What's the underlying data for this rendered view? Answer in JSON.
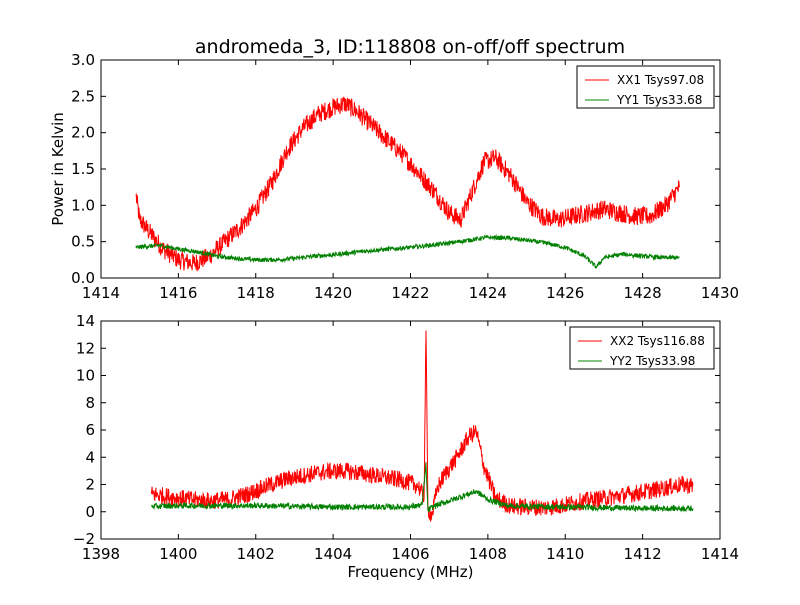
{
  "figure": {
    "title": "andromeda_3, ID:118808 on-off/off spectrum"
  },
  "colors": {
    "red": "#ff0000",
    "green": "#008000",
    "axes": "#000000",
    "background": "#ffffff"
  },
  "chart_data": [
    {
      "type": "line",
      "title": "andromeda_3, ID:118808 on-off/off spectrum",
      "xlabel": "",
      "ylabel": "Power in Kelvin",
      "xlim": [
        1414,
        1430
      ],
      "ylim": [
        0,
        3.0
      ],
      "xticks": [
        1414,
        1416,
        1418,
        1420,
        1422,
        1424,
        1426,
        1428,
        1430
      ],
      "xtick_labels": [
        "1414",
        "1416",
        "1418",
        "1420",
        "1422",
        "1424",
        "1426",
        "1428",
        "1430"
      ],
      "yticks": [
        0,
        0.5,
        1.0,
        1.5,
        2.0,
        2.5,
        3.0
      ],
      "ytick_labels": [
        "0.0",
        "0.5",
        "1.0",
        "1.5",
        "2.0",
        "2.5",
        "3.0"
      ],
      "grid": false,
      "legend": "top-right",
      "series": [
        {
          "name": "XX1 Tsys97.08",
          "color": "#ff0000",
          "x": [
            1414.9,
            1415.0,
            1415.3,
            1415.6,
            1416.0,
            1416.4,
            1416.8,
            1417.2,
            1417.6,
            1418.0,
            1418.4,
            1418.8,
            1419.2,
            1419.6,
            1420.0,
            1420.3,
            1420.6,
            1421.0,
            1421.4,
            1421.8,
            1422.2,
            1422.6,
            1423.0,
            1423.3,
            1423.6,
            1423.9,
            1424.2,
            1424.6,
            1425.0,
            1425.4,
            1425.8,
            1426.2,
            1426.6,
            1427.0,
            1427.4,
            1427.8,
            1428.2,
            1428.6,
            1428.95
          ],
          "y": [
            1.15,
            0.8,
            0.6,
            0.4,
            0.25,
            0.2,
            0.3,
            0.5,
            0.7,
            0.95,
            1.3,
            1.75,
            2.05,
            2.25,
            2.35,
            2.4,
            2.3,
            2.1,
            1.9,
            1.7,
            1.45,
            1.2,
            0.9,
            0.8,
            1.2,
            1.6,
            1.65,
            1.4,
            1.05,
            0.85,
            0.8,
            0.85,
            0.9,
            0.95,
            0.9,
            0.85,
            0.85,
            1.0,
            1.25
          ]
        },
        {
          "name": "YY1 Tsys33.68",
          "color": "#008000",
          "x": [
            1414.9,
            1415.5,
            1416.0,
            1416.5,
            1417.0,
            1417.5,
            1418.0,
            1418.5,
            1419.0,
            1419.5,
            1420.0,
            1420.5,
            1421.0,
            1421.5,
            1422.0,
            1422.5,
            1423.0,
            1423.5,
            1424.0,
            1424.5,
            1425.0,
            1425.5,
            1426.0,
            1426.5,
            1426.8,
            1427.0,
            1427.5,
            1428.0,
            1428.5,
            1428.95
          ],
          "y": [
            0.42,
            0.45,
            0.4,
            0.36,
            0.3,
            0.27,
            0.25,
            0.25,
            0.27,
            0.3,
            0.32,
            0.35,
            0.38,
            0.4,
            0.42,
            0.45,
            0.48,
            0.52,
            0.56,
            0.55,
            0.52,
            0.48,
            0.42,
            0.3,
            0.15,
            0.28,
            0.33,
            0.3,
            0.28,
            0.28
          ]
        }
      ]
    },
    {
      "type": "line",
      "title": "",
      "xlabel": "Frequency (MHz)",
      "ylabel": "",
      "xlim": [
        1398,
        1414
      ],
      "ylim": [
        -2,
        14
      ],
      "xticks": [
        1398,
        1400,
        1402,
        1404,
        1406,
        1408,
        1410,
        1412,
        1414
      ],
      "xtick_labels": [
        "1398",
        "1400",
        "1402",
        "1404",
        "1406",
        "1408",
        "1410",
        "1412",
        "1414"
      ],
      "yticks": [
        -2,
        0,
        2,
        4,
        6,
        8,
        10,
        12,
        14
      ],
      "ytick_labels": [
        "−2",
        "0",
        "2",
        "4",
        "6",
        "8",
        "10",
        "12",
        "14"
      ],
      "grid": false,
      "legend": "top-right",
      "series": [
        {
          "name": "XX2 Tsys116.88",
          "color": "#ff0000",
          "x": [
            1399.3,
            1399.8,
            1400.3,
            1400.8,
            1401.3,
            1401.8,
            1402.3,
            1402.8,
            1403.3,
            1403.8,
            1404.3,
            1404.8,
            1405.3,
            1405.8,
            1406.2,
            1406.35,
            1406.4,
            1406.45,
            1406.55,
            1406.7,
            1406.9,
            1407.2,
            1407.5,
            1407.7,
            1407.9,
            1408.2,
            1408.6,
            1409.0,
            1409.5,
            1410.0,
            1410.5,
            1411.0,
            1411.5,
            1412.0,
            1412.5,
            1413.0,
            1413.3
          ],
          "y": [
            1.3,
            1.1,
            0.9,
            0.8,
            0.9,
            1.3,
            1.9,
            2.4,
            2.7,
            2.95,
            3.0,
            2.8,
            2.55,
            2.3,
            1.9,
            1.0,
            13.3,
            0.2,
            -0.3,
            1.8,
            2.8,
            4.0,
            5.5,
            5.9,
            3.3,
            1.0,
            0.4,
            0.35,
            0.3,
            0.5,
            0.8,
            1.0,
            1.2,
            1.45,
            1.7,
            2.0,
            1.9
          ]
        },
        {
          "name": "YY2 Tsys33.98",
          "color": "#008000",
          "x": [
            1399.3,
            1400.0,
            1401.0,
            1402.0,
            1403.0,
            1404.0,
            1405.0,
            1406.0,
            1406.3,
            1406.4,
            1406.45,
            1406.6,
            1407.0,
            1407.5,
            1407.7,
            1408.0,
            1408.5,
            1409.0,
            1410.0,
            1411.0,
            1412.0,
            1413.0,
            1413.3
          ],
          "y": [
            0.4,
            0.45,
            0.45,
            0.45,
            0.4,
            0.35,
            0.35,
            0.35,
            0.5,
            3.5,
            0.1,
            0.4,
            0.8,
            1.3,
            1.5,
            0.9,
            0.45,
            0.4,
            0.35,
            0.3,
            0.25,
            0.25,
            0.25
          ]
        }
      ]
    }
  ]
}
